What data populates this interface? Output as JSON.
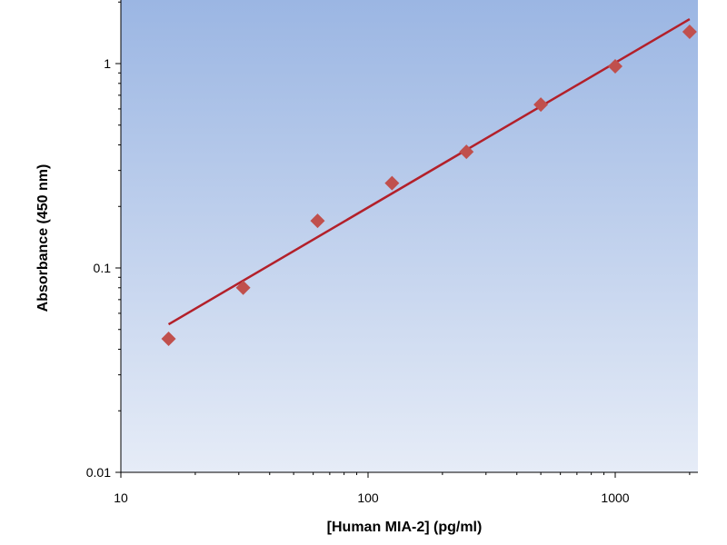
{
  "chart_data": {
    "type": "scatter",
    "title": "",
    "xlabel": "[Human MIA-2] (pg/ml)",
    "ylabel": "Absorbance (450 nm)",
    "x_scale": "log",
    "y_scale": "log",
    "xlim": [
      10,
      2000
    ],
    "ylim": [
      0.01,
      2
    ],
    "x_ticks": [
      {
        "value": 10,
        "label": "10"
      },
      {
        "value": 100,
        "label": "100"
      },
      {
        "value": 1000,
        "label": "1000"
      }
    ],
    "y_ticks": [
      {
        "value": 0.01,
        "label": "0.01"
      },
      {
        "value": 0.1,
        "label": "0.1"
      },
      {
        "value": 1,
        "label": "1"
      }
    ],
    "points": [
      {
        "x": 15.6,
        "y": 0.045
      },
      {
        "x": 31.25,
        "y": 0.08
      },
      {
        "x": 62.5,
        "y": 0.17
      },
      {
        "x": 125,
        "y": 0.26
      },
      {
        "x": 250,
        "y": 0.37
      },
      {
        "x": 500,
        "y": 0.63
      },
      {
        "x": 1000,
        "y": 0.97
      },
      {
        "x": 2000,
        "y": 1.43
      }
    ],
    "fit_line": {
      "x": [
        15.6,
        2000
      ],
      "y": [
        0.053,
        1.65
      ]
    },
    "grid": false,
    "legend": "none",
    "colors": {
      "marker": "#c0504d",
      "line": "#b3202a",
      "plot_bg_top": "#9bb6e3",
      "plot_bg_bottom": "#e6ecf7"
    }
  }
}
